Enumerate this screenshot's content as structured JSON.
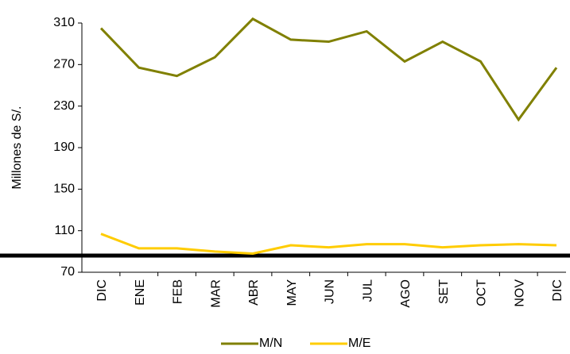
{
  "chart_data": {
    "type": "line",
    "y_label": "Millones de S/.",
    "categories": [
      "DIC",
      "ENE",
      "FEB",
      "MAR",
      "ABR",
      "MAY",
      "JUN",
      "JUL",
      "AGO",
      "SET",
      "OCT",
      "NOV",
      "DIC"
    ],
    "series": [
      {
        "name": "M/N",
        "color": "#808000",
        "values": [
          305,
          267,
          259,
          277,
          314,
          294,
          292,
          302,
          273,
          292,
          273,
          217,
          267
        ]
      },
      {
        "name": "M/E",
        "color": "#ffcc00",
        "values": [
          107,
          93,
          93,
          90,
          88,
          96,
          94,
          97,
          97,
          94,
          96,
          97,
          96
        ]
      }
    ],
    "ylim": [
      70,
      310
    ],
    "yticks": [
      70,
      110,
      150,
      190,
      230,
      270,
      310
    ],
    "grid": false
  }
}
